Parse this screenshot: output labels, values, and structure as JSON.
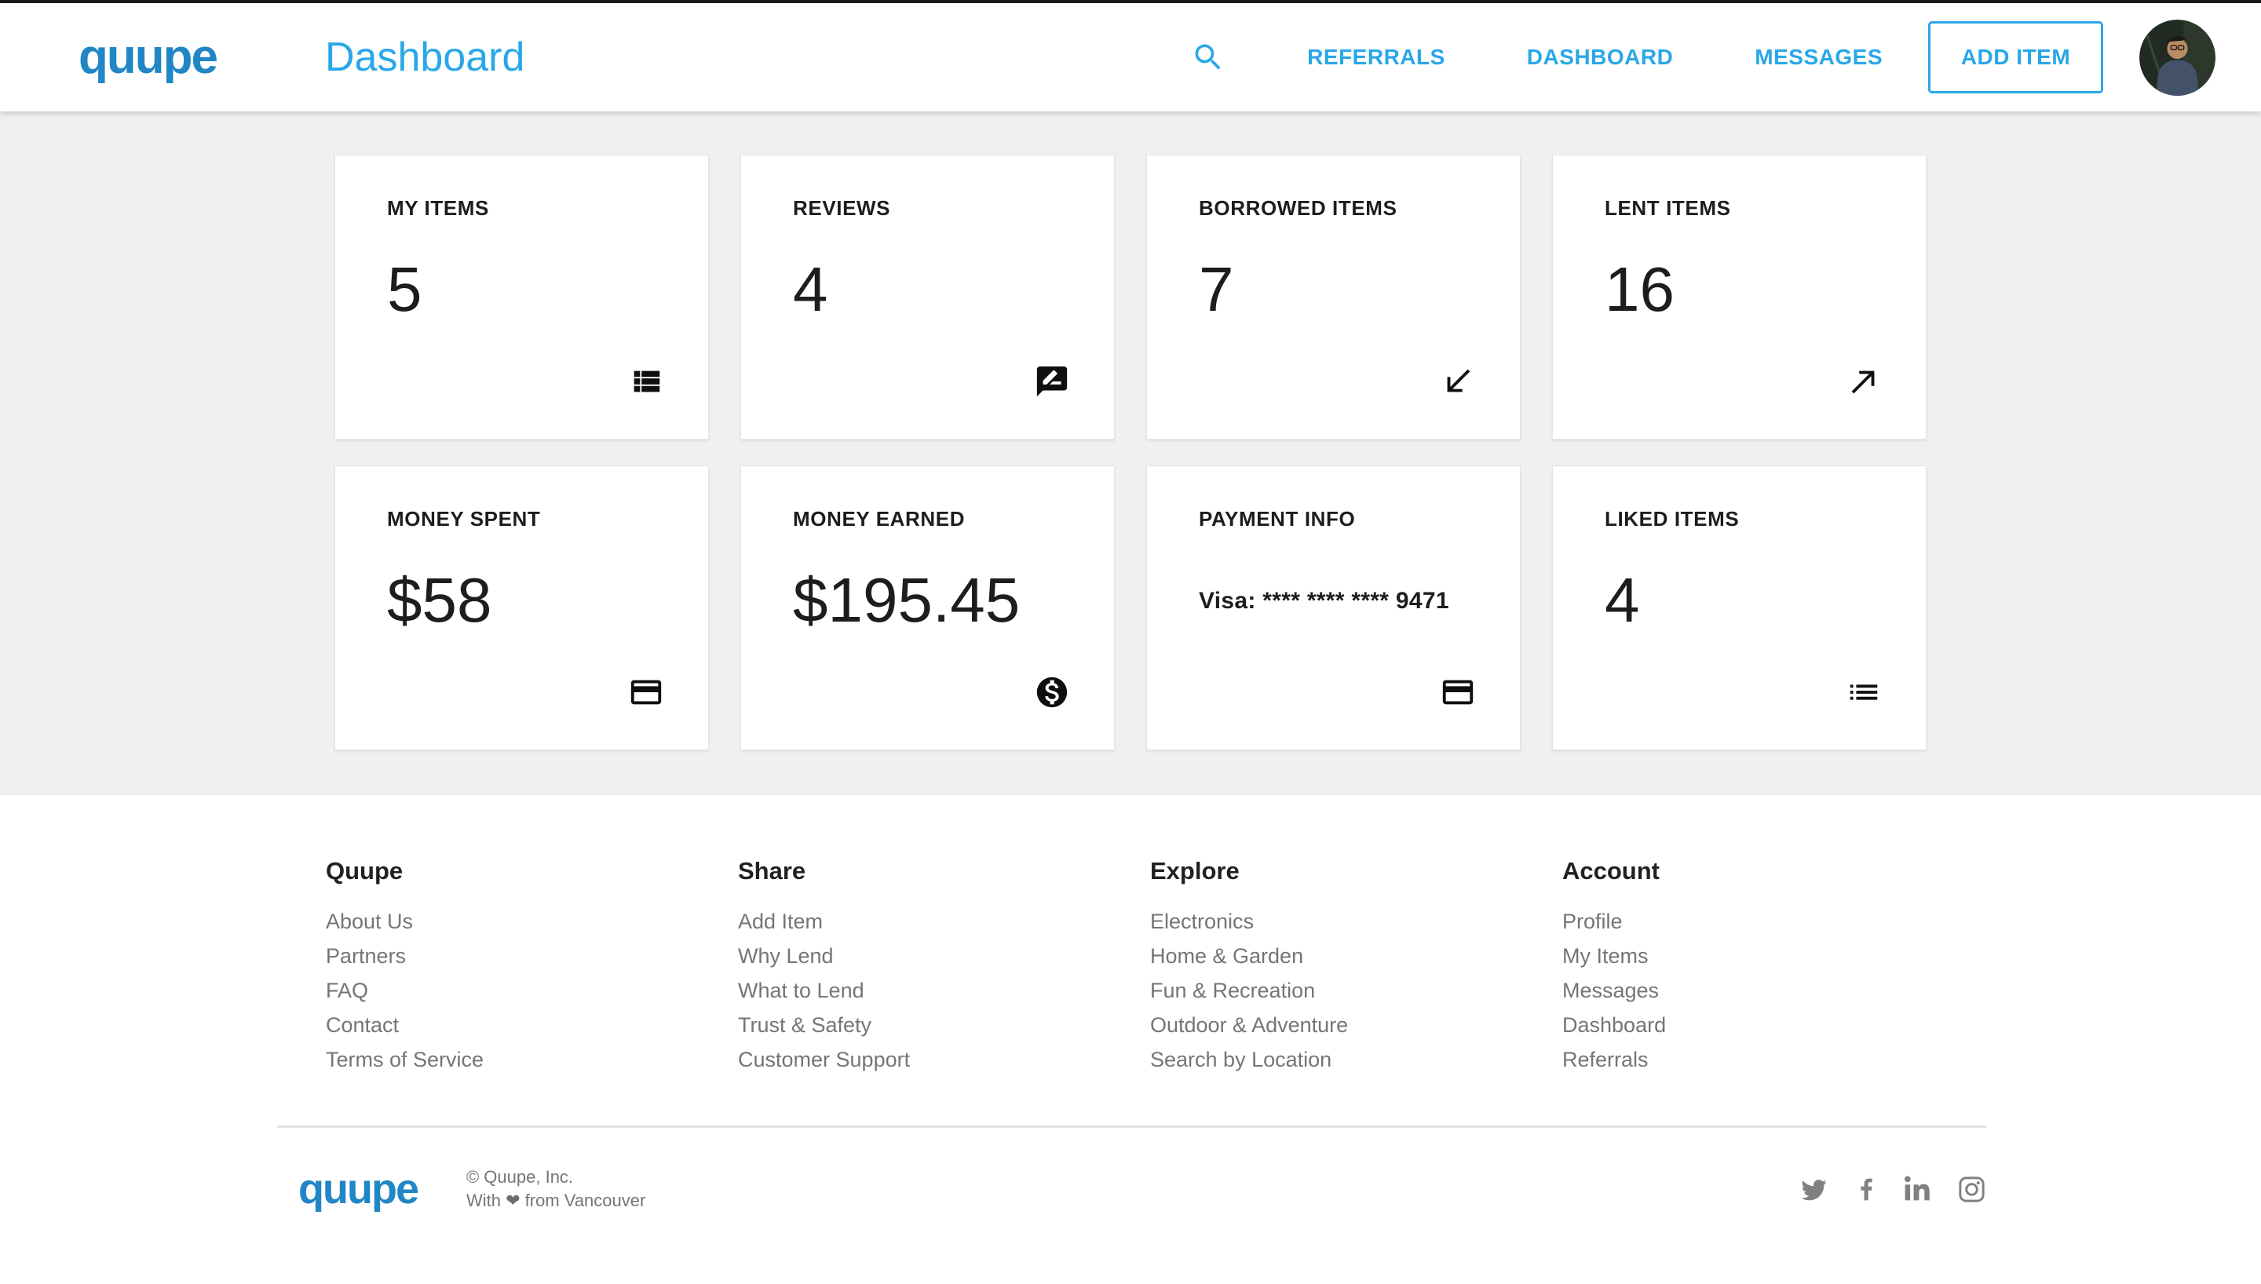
{
  "brand": {
    "logo_text": "quupe",
    "logo_color": "#2186c6",
    "accent_color": "#29a7e8"
  },
  "header": {
    "title": "Dashboard",
    "nav": [
      {
        "id": "referrals",
        "label": "REFERRALS"
      },
      {
        "id": "dashboard",
        "label": "DASHBOARD"
      },
      {
        "id": "messages",
        "label": "MESSAGES"
      }
    ],
    "add_item_label": "ADD ITEM",
    "search_icon": "search-icon",
    "avatar": "user-avatar"
  },
  "cards": [
    {
      "title": "MY ITEMS",
      "value": "5",
      "icon": "view-list"
    },
    {
      "title": "REVIEWS",
      "value": "4",
      "icon": "rate-review"
    },
    {
      "title": "BORROWED ITEMS",
      "value": "7",
      "icon": "arrow-down-left"
    },
    {
      "title": "LENT ITEMS",
      "value": "16",
      "icon": "arrow-up-right"
    },
    {
      "title": "MONEY SPENT",
      "value": "$58",
      "icon": "credit-card"
    },
    {
      "title": "MONEY EARNED",
      "value": "$195.45",
      "icon": "money-circle"
    },
    {
      "title": "PAYMENT INFO",
      "value": "Visa: **** **** **** 9471",
      "icon": "credit-card",
      "small": true
    },
    {
      "title": "LIKED ITEMS",
      "value": "4",
      "icon": "bullet-list"
    }
  ],
  "footer": {
    "columns": [
      {
        "heading": "Quupe",
        "links": [
          "About Us",
          "Partners",
          "FAQ",
          "Contact",
          "Terms of Service"
        ]
      },
      {
        "heading": "Share",
        "links": [
          "Add Item",
          "Why Lend",
          "What to Lend",
          "Trust & Safety",
          "Customer Support"
        ]
      },
      {
        "heading": "Explore",
        "links": [
          "Electronics",
          "Home & Garden",
          "Fun & Recreation",
          "Outdoor & Adventure",
          "Search by Location"
        ]
      },
      {
        "heading": "Account",
        "links": [
          "Profile",
          "My Items",
          "Messages",
          "Dashboard",
          "Referrals"
        ]
      }
    ],
    "logo_text": "quupe",
    "copyright_line1": "© Quupe, Inc.",
    "copyright_line2_prefix": "With",
    "copyright_heart": "❤",
    "copyright_line2_suffix": "from Vancouver",
    "social": [
      "twitter",
      "facebook",
      "linkedin",
      "instagram"
    ]
  }
}
